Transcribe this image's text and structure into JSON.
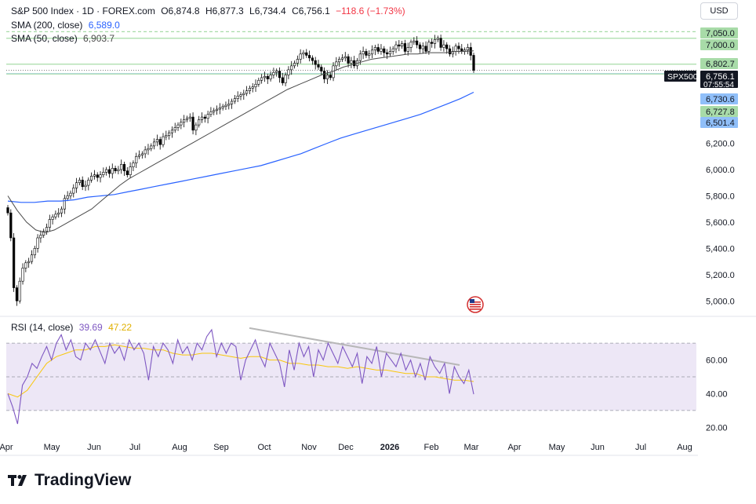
{
  "header": {
    "instrument": "S&P 500 Index · 1D · FOREX.com",
    "open_label": "O",
    "open": "6,874.8",
    "high_label": "H",
    "high": "6,877.3",
    "low_label": "L",
    "low": "6,734.4",
    "close_label": "C",
    "close": "6,756.1",
    "change": "−118.6 (−1.73%)"
  },
  "indicators": {
    "sma200_label": "SMA (200, close)",
    "sma200_value": "6,589.0",
    "sma50_label": "SMA (50, close)",
    "sma50_value": "6,903.7",
    "rsi_label": "RSI (14, close)",
    "rsi_value": "39.69",
    "rsi_ma_value": "47.22"
  },
  "currency_button": "USD",
  "brand": "TradingView",
  "colors": {
    "candle": "#000000",
    "sma200": "#2962ff",
    "sma50": "#4a4a4a",
    "rsi": "#7e57c2",
    "rsi_ma": "#f9c70a",
    "green_level": "#a8dba8",
    "blue_level": "#90bff9",
    "rsi_band": "#ede7f6",
    "trendline": "#b7b7b7"
  },
  "chart_data": {
    "type": "line",
    "title": "S&P 500 Index · 1D · FOREX.com",
    "symbol_tag": "SPX500",
    "countdown": "07:55:54",
    "x_ticks": [
      "Apr",
      "May",
      "Jun",
      "Jul",
      "Aug",
      "Sep",
      "Oct",
      "Nov",
      "Dec",
      "2026",
      "Feb",
      "Mar",
      "Apr",
      "May",
      "Jun",
      "Jul",
      "Aug"
    ],
    "price_axis_ticks": [
      "5,000.0",
      "5,200.0",
      "5,400.0",
      "5,600.0",
      "5,800.0",
      "6,000.0",
      "6,200.0"
    ],
    "ylim": [
      4900,
      7100
    ],
    "price_labels": [
      {
        "text": "7,050.0",
        "kind": "green",
        "value": 7050
      },
      {
        "text": "7,000.0",
        "kind": "green",
        "value": 7000
      },
      {
        "text": "6,802.7",
        "kind": "green",
        "value": 6802.7
      },
      {
        "text": "6,756.1",
        "kind": "last",
        "value": 6756.1
      },
      {
        "text": "6,730.6",
        "kind": "blue",
        "value": 6730.6
      },
      {
        "text": "6,727.8",
        "kind": "green",
        "value": 6727.8
      },
      {
        "text": "6,501.4",
        "kind": "blue",
        "value": 6501.4
      }
    ],
    "horizontal_levels": [
      7050,
      7000,
      6802.7,
      6730.6,
      6727.8
    ],
    "close_series": [
      5670,
      5480,
      5100,
      5000,
      5150,
      5250,
      5290,
      5300,
      5350,
      5400,
      5480,
      5500,
      5530,
      5560,
      5620,
      5640,
      5660,
      5670,
      5700,
      5780,
      5800,
      5820,
      5860,
      5900,
      5920,
      5870,
      5880,
      5920,
      5950,
      5960,
      5940,
      5960,
      5980,
      6000,
      5970,
      6010,
      5990,
      6000,
      6040,
      5990,
      5960,
      6020,
      6050,
      6100,
      6110,
      6120,
      6150,
      6160,
      6180,
      6210,
      6230,
      6190,
      6250,
      6260,
      6280,
      6300,
      6320,
      6340,
      6360,
      6380,
      6390,
      6400,
      6300,
      6340,
      6380,
      6400,
      6390,
      6420,
      6440,
      6450,
      6460,
      6470,
      6480,
      6490,
      6500,
      6520,
      6540,
      6560,
      6570,
      6580,
      6600,
      6620,
      6630,
      6650,
      6680,
      6700,
      6710,
      6690,
      6720,
      6740,
      6750,
      6700,
      6660,
      6720,
      6760,
      6790,
      6810,
      6840,
      6880,
      6890,
      6870,
      6850,
      6830,
      6800,
      6780,
      6750,
      6690,
      6720,
      6700,
      6790,
      6820,
      6840,
      6850,
      6860,
      6810,
      6830,
      6790,
      6830,
      6880,
      6900,
      6870,
      6880,
      6910,
      6930,
      6900,
      6920,
      6890,
      6880,
      6900,
      6920,
      6950,
      6940,
      6960,
      6900,
      6930,
      6970,
      6980,
      6950,
      6920,
      6940,
      6900,
      6970,
      6960,
      6990,
      7000,
      6930,
      6950,
      6920,
      6880,
      6900,
      6940,
      6920,
      6900,
      6910,
      6930,
      6870,
      6756.1
    ],
    "sma50_series": [
      5800,
      5690,
      5600,
      5540,
      5520,
      5540,
      5580,
      5620,
      5660,
      5700,
      5760,
      5820,
      5880,
      5930,
      5970,
      6010,
      6050,
      6090,
      6130,
      6170,
      6210,
      6250,
      6290,
      6330,
      6370,
      6410,
      6450,
      6490,
      6530,
      6570,
      6610,
      6640,
      6670,
      6700,
      6730,
      6750,
      6780,
      6800,
      6820,
      6840,
      6850,
      6860,
      6870,
      6880,
      6880,
      6890,
      6890,
      6890,
      6900,
      6900,
      6903.7
    ],
    "sma200_series": [
      5760,
      5750,
      5750,
      5760,
      5760,
      5770,
      5790,
      5800,
      5810,
      5830,
      5850,
      5870,
      5890,
      5910,
      5930,
      5950,
      5970,
      5990,
      6010,
      6030,
      6060,
      6090,
      6120,
      6160,
      6200,
      6240,
      6270,
      6300,
      6330,
      6360,
      6390,
      6420,
      6460,
      6500,
      6540,
      6589.0
    ],
    "rsi_series": [
      40,
      32,
      22,
      45,
      50,
      58,
      55,
      62,
      68,
      60,
      70,
      75,
      66,
      72,
      62,
      60,
      70,
      66,
      72,
      65,
      58,
      70,
      64,
      68,
      60,
      72,
      66,
      70,
      64,
      48,
      68,
      62,
      70,
      66,
      58,
      72,
      64,
      68,
      60,
      70,
      66,
      74,
      78,
      62,
      70,
      64,
      70,
      68,
      48,
      60,
      66,
      72,
      62,
      56,
      70,
      64,
      58,
      44,
      66,
      54,
      70,
      62,
      68,
      50,
      66,
      60,
      70,
      64,
      58,
      68,
      62,
      56,
      64,
      46,
      62,
      58,
      68,
      50,
      64,
      60,
      56,
      64,
      54,
      60,
      50,
      58,
      48,
      62,
      56,
      52,
      58,
      40,
      56,
      50,
      46,
      54,
      39.69
    ],
    "rsi_ma_series": [
      40,
      38,
      42,
      50,
      58,
      62,
      64,
      66,
      66,
      68,
      68,
      69,
      68,
      67,
      67,
      66,
      66,
      64,
      63,
      63,
      64,
      64,
      63,
      62,
      61,
      62,
      62,
      60,
      60,
      58,
      58,
      57,
      57,
      56,
      56,
      55,
      56,
      55,
      54,
      54,
      53,
      52,
      52,
      50,
      50,
      49,
      48,
      48,
      47.22
    ],
    "rsi_ylim": [
      15,
      85
    ],
    "rsi_ticks": [
      "60.00",
      "40.00",
      "20.00"
    ],
    "rsi_levels": [
      70,
      50,
      30
    ]
  }
}
